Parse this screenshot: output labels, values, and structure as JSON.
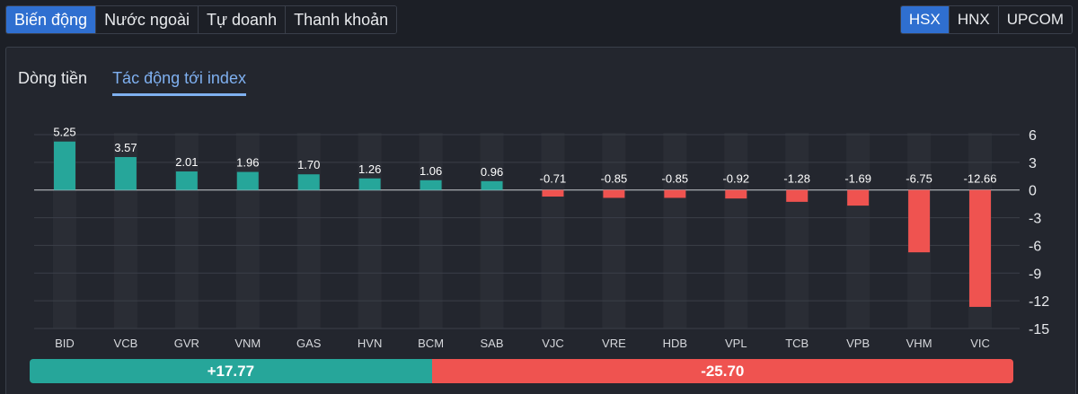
{
  "top_tabs": [
    {
      "label": "Biến động",
      "active": true
    },
    {
      "label": "Nước ngoài",
      "active": false
    },
    {
      "label": "Tự doanh",
      "active": false
    },
    {
      "label": "Thanh khoản",
      "active": false
    }
  ],
  "exchange_tabs": [
    {
      "label": "HSX",
      "active": true
    },
    {
      "label": "HNX",
      "active": false
    },
    {
      "label": "UPCOM",
      "active": false
    }
  ],
  "sub_tabs": [
    {
      "label": "Dòng tiền",
      "active": false
    },
    {
      "label": "Tác động tới index",
      "active": true
    }
  ],
  "colors": {
    "positive": "#26a69a",
    "negative": "#ef5350",
    "accent": "#2f6fd0"
  },
  "chart_data": {
    "type": "bar",
    "categories": [
      "BID",
      "VCB",
      "GVR",
      "VNM",
      "GAS",
      "HVN",
      "BCM",
      "SAB",
      "VJC",
      "VRE",
      "HDB",
      "VPL",
      "TCB",
      "VPB",
      "VHM",
      "VIC"
    ],
    "values": [
      5.25,
      3.57,
      2.01,
      1.96,
      1.7,
      1.26,
      1.06,
      0.96,
      -0.71,
      -0.85,
      -0.85,
      -0.92,
      -1.28,
      -1.69,
      -6.75,
      -12.66
    ],
    "value_labels": [
      "5.25",
      "3.57",
      "2.01",
      "1.96",
      "1.70",
      "1.26",
      "1.06",
      "0.96",
      "-0.71",
      "-0.85",
      "-0.85",
      "-0.92",
      "-1.28",
      "-1.69",
      "-6.75",
      "-12.66"
    ],
    "y_ticks": [
      6,
      3,
      0,
      -3,
      -6,
      -9,
      -12,
      -15
    ],
    "ylim": [
      -15,
      6
    ],
    "y_axis_position": "right",
    "grid": true
  },
  "summary": {
    "positive_label": "+17.77",
    "negative_label": "-25.70",
    "positive_value": 17.77,
    "negative_value": 25.7
  }
}
